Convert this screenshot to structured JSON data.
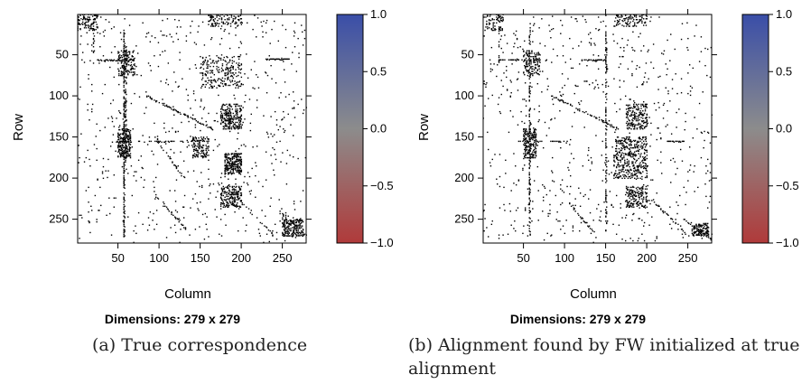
{
  "chart_data": [
    {
      "type": "heatmap",
      "caption": "(a) True correspondence",
      "xlabel": "Column",
      "ylabel": "Row",
      "subtitle": "Dimensions: 279 x 279",
      "dimensions": [
        279,
        279
      ],
      "x_ticks": [
        50,
        100,
        150,
        200,
        250
      ],
      "y_ticks": [
        50,
        100,
        150,
        200,
        250
      ],
      "xlim": [
        1,
        279
      ],
      "ylim": [
        279,
        1
      ],
      "colorbar": {
        "min": -1.0,
        "max": 1.0,
        "ticks": [
          "1.0",
          "0.5",
          "0.0",
          "−0.5",
          "−1.0"
        ],
        "tick_values": [
          1.0,
          0.5,
          0.0,
          -0.5,
          -1.0
        ],
        "colors": {
          "high": "#3a4ea8",
          "mid": "#8c8c8c",
          "low": "#b03a3a"
        }
      },
      "cell_color": "#000000",
      "pattern_seed": 7,
      "bands": [
        {
          "axis": "col",
          "at": 57,
          "from": 20,
          "to": 270,
          "density": 0.55
        },
        {
          "axis": "col",
          "at": 59,
          "from": 40,
          "to": 180,
          "density": 0.5
        },
        {
          "axis": "row",
          "at": 56,
          "from": 25,
          "to": 70,
          "density": 0.7
        },
        {
          "axis": "row",
          "at": 55,
          "from": 230,
          "to": 258,
          "density": 0.85
        },
        {
          "axis": "row",
          "at": 155,
          "from": 40,
          "to": 150,
          "density": 0.35
        },
        {
          "axis": "col",
          "at": 20,
          "from": 1,
          "to": 60,
          "density": 0.3
        }
      ],
      "blocks": [
        {
          "r": [
            1,
            20
          ],
          "c": [
            1,
            25
          ],
          "density": 0.18
        },
        {
          "r": [
            1,
            15
          ],
          "c": [
            160,
            200
          ],
          "density": 0.15
        },
        {
          "r": [
            45,
            75
          ],
          "c": [
            50,
            70
          ],
          "density": 0.2
        },
        {
          "r": [
            50,
            90
          ],
          "c": [
            150,
            200
          ],
          "density": 0.12
        },
        {
          "r": [
            110,
            140
          ],
          "c": [
            175,
            200
          ],
          "density": 0.25
        },
        {
          "r": [
            140,
            175
          ],
          "c": [
            50,
            65
          ],
          "density": 0.35
        },
        {
          "r": [
            150,
            175
          ],
          "c": [
            140,
            160
          ],
          "density": 0.2
        },
        {
          "r": [
            170,
            195
          ],
          "c": [
            180,
            200
          ],
          "density": 0.35
        },
        {
          "r": [
            210,
            235
          ],
          "c": [
            175,
            200
          ],
          "density": 0.25
        },
        {
          "r": [
            250,
            270
          ],
          "c": [
            250,
            275
          ],
          "density": 0.3
        }
      ],
      "diagonals": [
        {
          "r0": 100,
          "c0": 85,
          "r1": 140,
          "c1": 165,
          "density": 0.8
        },
        {
          "r0": 150,
          "c0": 95,
          "r1": 200,
          "c1": 130,
          "density": 0.5
        },
        {
          "r0": 230,
          "c0": 105,
          "r1": 265,
          "c1": 135,
          "density": 0.7
        },
        {
          "r0": 230,
          "c0": 200,
          "r1": 270,
          "c1": 240,
          "density": 0.6
        },
        {
          "r0": 240,
          "c0": 245,
          "r1": 270,
          "c1": 279,
          "density": 0.8
        }
      ],
      "scatter_count": 650
    },
    {
      "type": "heatmap",
      "caption": "(b) Alignment found by FW initialized at true alignment",
      "xlabel": "Column",
      "ylabel": "Row",
      "subtitle": "Dimensions: 279 x 279",
      "dimensions": [
        279,
        279
      ],
      "x_ticks": [
        50,
        100,
        150,
        200,
        250
      ],
      "y_ticks": [
        50,
        100,
        150,
        200,
        250
      ],
      "xlim": [
        1,
        279
      ],
      "ylim": [
        279,
        1
      ],
      "colorbar": {
        "min": -1.0,
        "max": 1.0,
        "ticks": [
          "1.0",
          "0.5",
          "0.0",
          "−0.5",
          "−1.0"
        ],
        "tick_values": [
          1.0,
          0.5,
          0.0,
          -0.5,
          -1.0
        ],
        "colors": {
          "high": "#3a4ea8",
          "mid": "#8c8c8c",
          "low": "#b03a3a"
        }
      },
      "cell_color": "#000000",
      "pattern_seed": 19,
      "bands": [
        {
          "axis": "col",
          "at": 57,
          "from": 20,
          "to": 270,
          "density": 0.45
        },
        {
          "axis": "col",
          "at": 150,
          "from": 20,
          "to": 270,
          "density": 0.4
        },
        {
          "axis": "row",
          "at": 56,
          "from": 20,
          "to": 70,
          "density": 0.6
        },
        {
          "axis": "row",
          "at": 56,
          "from": 120,
          "to": 150,
          "density": 0.6
        },
        {
          "axis": "row",
          "at": 155,
          "from": 40,
          "to": 110,
          "density": 0.35
        },
        {
          "axis": "row",
          "at": 155,
          "from": 225,
          "to": 245,
          "density": 0.8
        },
        {
          "axis": "col",
          "at": 20,
          "from": 1,
          "to": 60,
          "density": 0.3
        }
      ],
      "blocks": [
        {
          "r": [
            1,
            20
          ],
          "c": [
            1,
            25
          ],
          "density": 0.18
        },
        {
          "r": [
            1,
            15
          ],
          "c": [
            160,
            200
          ],
          "density": 0.15
        },
        {
          "r": [
            45,
            75
          ],
          "c": [
            50,
            70
          ],
          "density": 0.18
        },
        {
          "r": [
            110,
            140
          ],
          "c": [
            175,
            200
          ],
          "density": 0.2
        },
        {
          "r": [
            140,
            175
          ],
          "c": [
            50,
            65
          ],
          "density": 0.3
        },
        {
          "r": [
            150,
            200
          ],
          "c": [
            160,
            200
          ],
          "density": 0.15
        },
        {
          "r": [
            210,
            235
          ],
          "c": [
            175,
            200
          ],
          "density": 0.2
        },
        {
          "r": [
            255,
            270
          ],
          "c": [
            255,
            275
          ],
          "density": 0.3
        }
      ],
      "diagonals": [
        {
          "r0": 100,
          "c0": 85,
          "r1": 140,
          "c1": 165,
          "density": 0.7
        },
        {
          "r0": 230,
          "c0": 105,
          "r1": 265,
          "c1": 135,
          "density": 0.6
        },
        {
          "r0": 225,
          "c0": 205,
          "r1": 270,
          "c1": 250,
          "density": 0.6
        },
        {
          "r0": 250,
          "c0": 245,
          "r1": 275,
          "c1": 279,
          "density": 0.7
        }
      ],
      "scatter_count": 700
    }
  ]
}
